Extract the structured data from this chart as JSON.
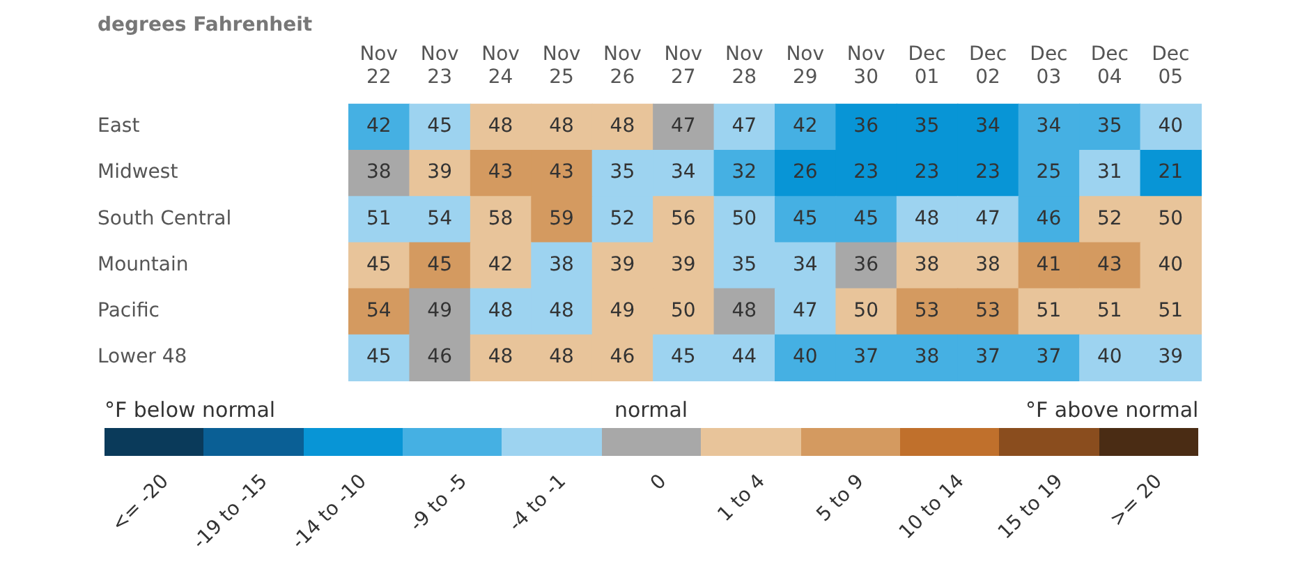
{
  "chart_data": [
    {
      "type": "heatmap",
      "title": "degrees Fahrenheit",
      "categories": [
        "Nov 22",
        "Nov 23",
        "Nov 24",
        "Nov 25",
        "Nov 26",
        "Nov 27",
        "Nov 28",
        "Nov 29",
        "Nov 30",
        "Dec 01",
        "Dec 02",
        "Dec 03",
        "Dec 04",
        "Dec 05"
      ],
      "y_categories": [
        "East",
        "Midwest",
        "South Central",
        "Mountain",
        "Pacific",
        "Lower 48"
      ],
      "cells": [
        [
          42,
          45,
          48,
          48,
          48,
          47,
          47,
          42,
          36,
          35,
          34,
          34,
          35,
          40
        ],
        [
          38,
          39,
          43,
          43,
          35,
          34,
          32,
          26,
          23,
          23,
          23,
          25,
          31,
          21
        ],
        [
          51,
          54,
          58,
          59,
          52,
          56,
          50,
          45,
          45,
          48,
          47,
          46,
          52,
          50
        ],
        [
          45,
          45,
          42,
          38,
          39,
          39,
          35,
          34,
          36,
          38,
          38,
          41,
          43,
          40
        ],
        [
          54,
          49,
          48,
          48,
          49,
          50,
          48,
          47,
          50,
          53,
          53,
          51,
          51,
          51
        ],
        [
          45,
          46,
          48,
          48,
          46,
          45,
          44,
          40,
          37,
          38,
          37,
          37,
          40,
          39
        ]
      ],
      "colors": [
        [
          "#45b0e3",
          "#9dd3f0",
          "#e8c49a",
          "#e8c49a",
          "#e8c49a",
          "#a8a8a8",
          "#9dd3f0",
          "#45b0e3",
          "#0895d6",
          "#0895d6",
          "#0895d6",
          "#45b0e3",
          "#45b0e3",
          "#9dd3f0"
        ],
        [
          "#a8a8a8",
          "#e8c49a",
          "#d49a60",
          "#d49a60",
          "#9dd3f0",
          "#9dd3f0",
          "#45b0e3",
          "#0895d6",
          "#0895d6",
          "#0895d6",
          "#0895d6",
          "#45b0e3",
          "#9dd3f0",
          "#0895d6"
        ],
        [
          "#9dd3f0",
          "#9dd3f0",
          "#e8c49a",
          "#d49a60",
          "#9dd3f0",
          "#e8c49a",
          "#9dd3f0",
          "#45b0e3",
          "#45b0e3",
          "#9dd3f0",
          "#9dd3f0",
          "#45b0e3",
          "#e8c49a",
          "#e8c49a"
        ],
        [
          "#e8c49a",
          "#d49a60",
          "#e8c49a",
          "#9dd3f0",
          "#e8c49a",
          "#e8c49a",
          "#9dd3f0",
          "#9dd3f0",
          "#a8a8a8",
          "#e8c49a",
          "#e8c49a",
          "#d49a60",
          "#d49a60",
          "#e8c49a"
        ],
        [
          "#d49a60",
          "#a8a8a8",
          "#9dd3f0",
          "#9dd3f0",
          "#e8c49a",
          "#e8c49a",
          "#a8a8a8",
          "#9dd3f0",
          "#e8c49a",
          "#d49a60",
          "#d49a60",
          "#e8c49a",
          "#e8c49a",
          "#e8c49a"
        ],
        [
          "#9dd3f0",
          "#a8a8a8",
          "#e8c49a",
          "#e8c49a",
          "#e8c49a",
          "#9dd3f0",
          "#9dd3f0",
          "#45b0e3",
          "#45b0e3",
          "#45b0e3",
          "#45b0e3",
          "#45b0e3",
          "#9dd3f0",
          "#9dd3f0"
        ]
      ],
      "data_labels": true
    },
    {
      "type": "other",
      "categories": [
        "<= -20",
        "-19 to -15",
        "-14 to -10",
        "-9 to -5",
        "-4 to -1",
        "0",
        "1 to 4",
        "5 to 9",
        "10 to 14",
        "15 to 19",
        ">= 20"
      ],
      "colors": [
        "#0a3a5a",
        "#0a5f95",
        "#0895d6",
        "#45b0e3",
        "#9dd3f0",
        "#a8a8a8",
        "#e8c49a",
        "#d49a60",
        "#c0702c",
        "#8a4d1e",
        "#4a2c14"
      ],
      "annotations": [
        "°F below normal",
        "normal",
        "°F above normal"
      ]
    }
  ]
}
